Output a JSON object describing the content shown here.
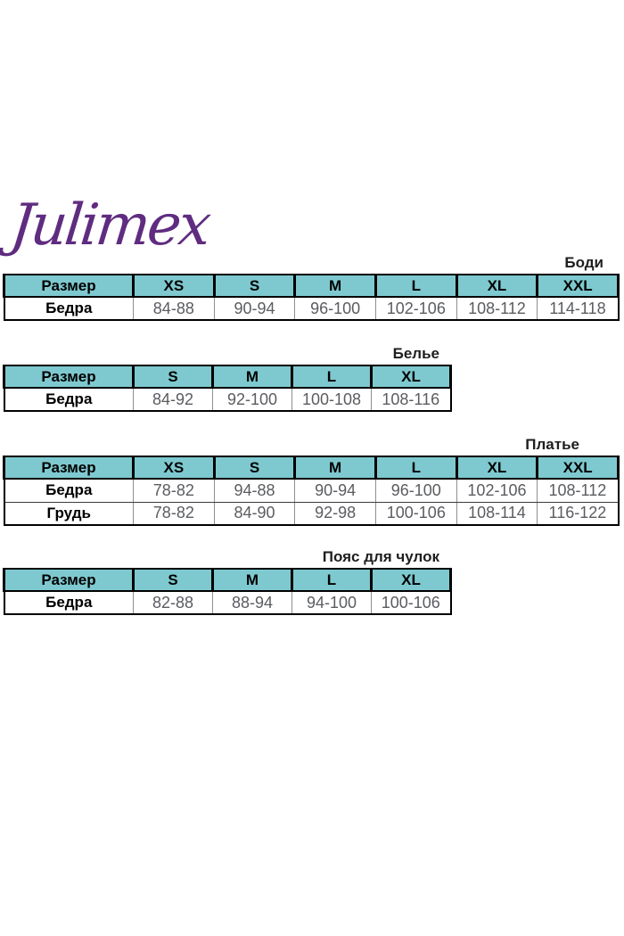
{
  "brand": {
    "name": "Julimex",
    "logo_color": "#5f2c80"
  },
  "theme": {
    "header_bg": "#7ec9cf",
    "outer_border": "#000000",
    "value_text": "#5a5c60"
  },
  "tables": [
    {
      "label": "Боди",
      "columns": [
        "Размер",
        "XS",
        "S",
        "M",
        "L",
        "XL",
        "XXL"
      ],
      "rows": [
        [
          "Бедра",
          "84-88",
          "90-94",
          "96-100",
          "102-106",
          "108-112",
          "114-118"
        ]
      ]
    },
    {
      "label": "Белье",
      "columns": [
        "Размер",
        "S",
        "M",
        "L",
        "XL"
      ],
      "rows": [
        [
          "Бедра",
          "84-92",
          "92-100",
          "100-108",
          "108-116"
        ]
      ]
    },
    {
      "label": "Платье",
      "columns": [
        "Размер",
        "XS",
        "S",
        "M",
        "L",
        "XL",
        "XXL"
      ],
      "rows": [
        [
          "Бедра",
          "78-82",
          "94-88",
          "90-94",
          "96-100",
          "102-106",
          "108-112"
        ],
        [
          "Грудь",
          "78-82",
          "84-90",
          "92-98",
          "100-106",
          "108-114",
          "116-122"
        ]
      ]
    },
    {
      "label": "Пояс для чулок",
      "columns": [
        "Размер",
        "S",
        "M",
        "L",
        "XL"
      ],
      "rows": [
        [
          "Бедра",
          "82-88",
          "88-94",
          "94-100",
          "100-106"
        ]
      ]
    }
  ]
}
